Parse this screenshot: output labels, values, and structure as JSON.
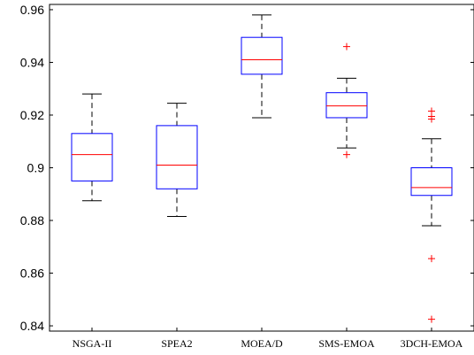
{
  "chart_data": {
    "type": "box",
    "title": "",
    "xlabel": "",
    "ylabel": "",
    "ylim": [
      0.838,
      0.962
    ],
    "yticks": [
      0.84,
      0.86,
      0.88,
      0.9,
      0.92,
      0.94,
      0.96
    ],
    "ytick_labels": [
      "0.84",
      "0.86",
      "0.88",
      "0.9",
      "0.92",
      "0.94",
      "0.96"
    ],
    "grid": false,
    "categories": [
      "NSGA-II",
      "SPEA2",
      "MOEA/D",
      "SMS-EMOA",
      "3DCH-EMOA"
    ],
    "boxes": [
      {
        "min": 0.8875,
        "q1": 0.895,
        "median": 0.905,
        "q3": 0.913,
        "max": 0.928,
        "outliers": []
      },
      {
        "min": 0.8815,
        "q1": 0.892,
        "median": 0.901,
        "q3": 0.916,
        "max": 0.9245,
        "outliers": []
      },
      {
        "min": 0.919,
        "q1": 0.9355,
        "median": 0.941,
        "q3": 0.9495,
        "max": 0.958,
        "outliers": []
      },
      {
        "min": 0.9075,
        "q1": 0.919,
        "median": 0.9235,
        "q3": 0.9285,
        "max": 0.934,
        "outliers": [
          0.946,
          0.905
        ]
      },
      {
        "min": 0.878,
        "q1": 0.8895,
        "median": 0.8925,
        "q3": 0.9,
        "max": 0.911,
        "outliers": [
          0.9215,
          0.9195,
          0.9185,
          0.8655,
          0.8425
        ]
      }
    ],
    "colors": {
      "box": "#0000ff",
      "median": "#ff0000",
      "whisker": "#000000",
      "outlier": "#ff0000",
      "axis": "#000000"
    }
  }
}
